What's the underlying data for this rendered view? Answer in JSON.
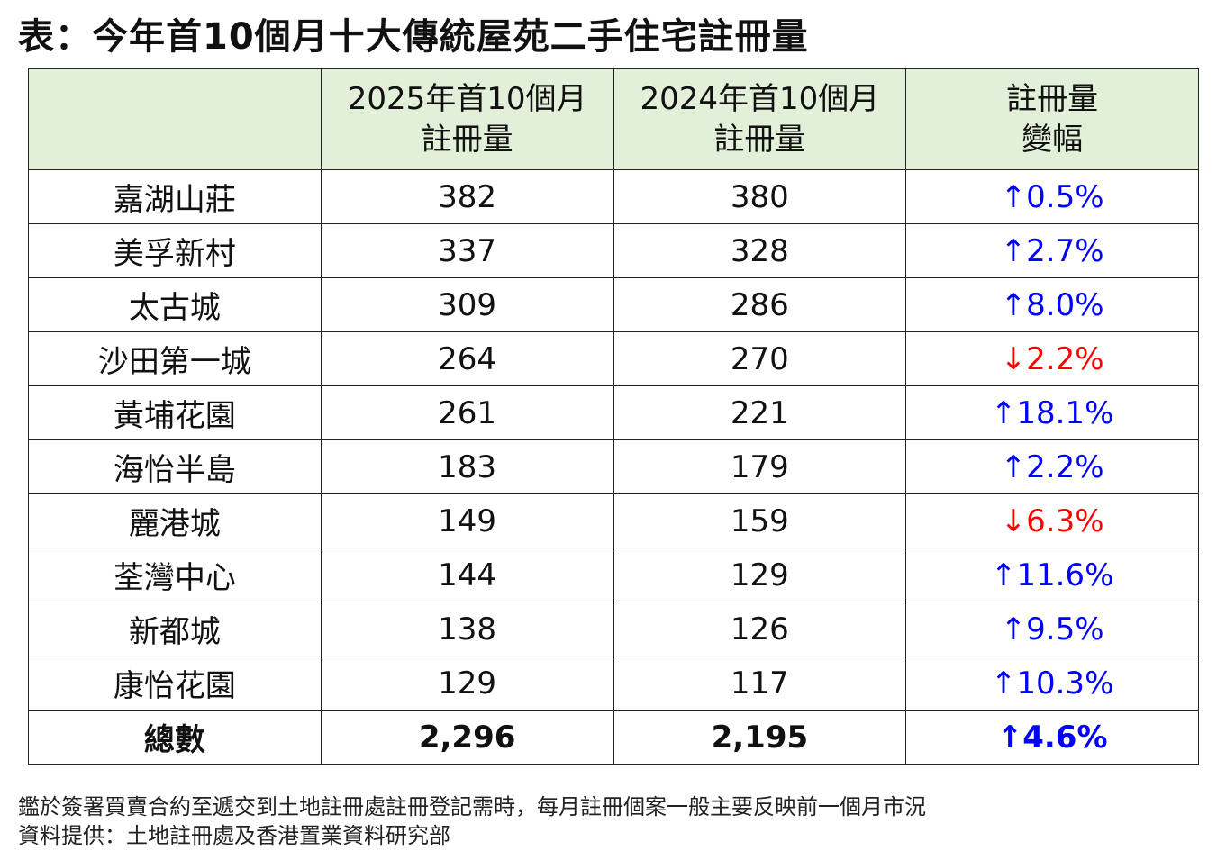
{
  "title": "表：今年首10個月十大傳統屋苑二手住宅註冊量",
  "chart_data": {
    "type": "table",
    "columns": [
      "",
      "2025年首10個月\n註冊量",
      "2024年首10個月\n註冊量",
      "註冊量\n變幅"
    ],
    "header": {
      "col1_line1": "2025年首10個月",
      "col1_line2": "註冊量",
      "col2_line1": "2024年首10個月",
      "col2_line2": "註冊量",
      "col3_line1": "註冊量",
      "col3_line2": "變幅"
    },
    "rows": [
      {
        "name": "嘉湖山莊",
        "y2025": "382",
        "y2024": "380",
        "change": "↑0.5%",
        "direction": "up"
      },
      {
        "name": "美孚新村",
        "y2025": "337",
        "y2024": "328",
        "change": "↑2.7%",
        "direction": "up"
      },
      {
        "name": "太古城",
        "y2025": "309",
        "y2024": "286",
        "change": "↑8.0%",
        "direction": "up"
      },
      {
        "name": "沙田第一城",
        "y2025": "264",
        "y2024": "270",
        "change": "↓2.2%",
        "direction": "down"
      },
      {
        "name": "黃埔花園",
        "y2025": "261",
        "y2024": "221",
        "change": "↑18.1%",
        "direction": "up"
      },
      {
        "name": "海怡半島",
        "y2025": "183",
        "y2024": "179",
        "change": "↑2.2%",
        "direction": "up"
      },
      {
        "name": "麗港城",
        "y2025": "149",
        "y2024": "159",
        "change": "↓6.3%",
        "direction": "down"
      },
      {
        "name": "荃灣中心",
        "y2025": "144",
        "y2024": "129",
        "change": "↑11.6%",
        "direction": "up"
      },
      {
        "name": "新都城",
        "y2025": "138",
        "y2024": "126",
        "change": "↑9.5%",
        "direction": "up"
      },
      {
        "name": "康怡花園",
        "y2025": "129",
        "y2024": "117",
        "change": "↑10.3%",
        "direction": "up"
      }
    ],
    "total": {
      "name": "總數",
      "y2025": "2,296",
      "y2024": "2,195",
      "change": "↑4.6%",
      "direction": "up"
    }
  },
  "colors": {
    "header_bg": "#e2efd9",
    "up": "#0000ff",
    "down": "#ff0000"
  },
  "notes": {
    "line1": "鑑於簽署買賣合約至遞交到土地註冊處註冊登記需時，每月註冊個案一般主要反映前一個月市況",
    "line2": "資料提供：土地註冊處及香港置業資料研究部"
  }
}
